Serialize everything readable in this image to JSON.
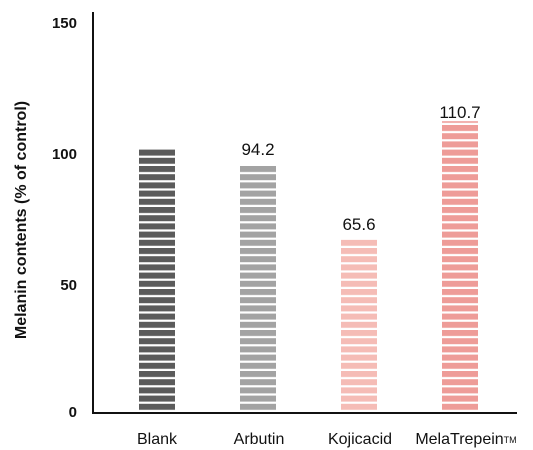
{
  "chart_data": {
    "type": "bar",
    "categories": [
      "Blank",
      "Arbutin",
      "Kojicacid",
      "MelaTrepein™"
    ],
    "values": [
      100,
      94.2,
      65.6,
      110.7
    ],
    "data_labels": [
      "",
      "94.2",
      "65.6",
      "110.7"
    ],
    "ylabel": "Melanin contents (% of control)",
    "xlabel": "",
    "ylim": [
      0,
      150
    ],
    "yticks": [
      "0",
      "50",
      "100",
      "150"
    ],
    "grid": false,
    "legend": "none",
    "bar_colors": [
      "#5b5b5b",
      "#a3a3a3",
      "#f5bcb6",
      "#ee9c98"
    ]
  }
}
